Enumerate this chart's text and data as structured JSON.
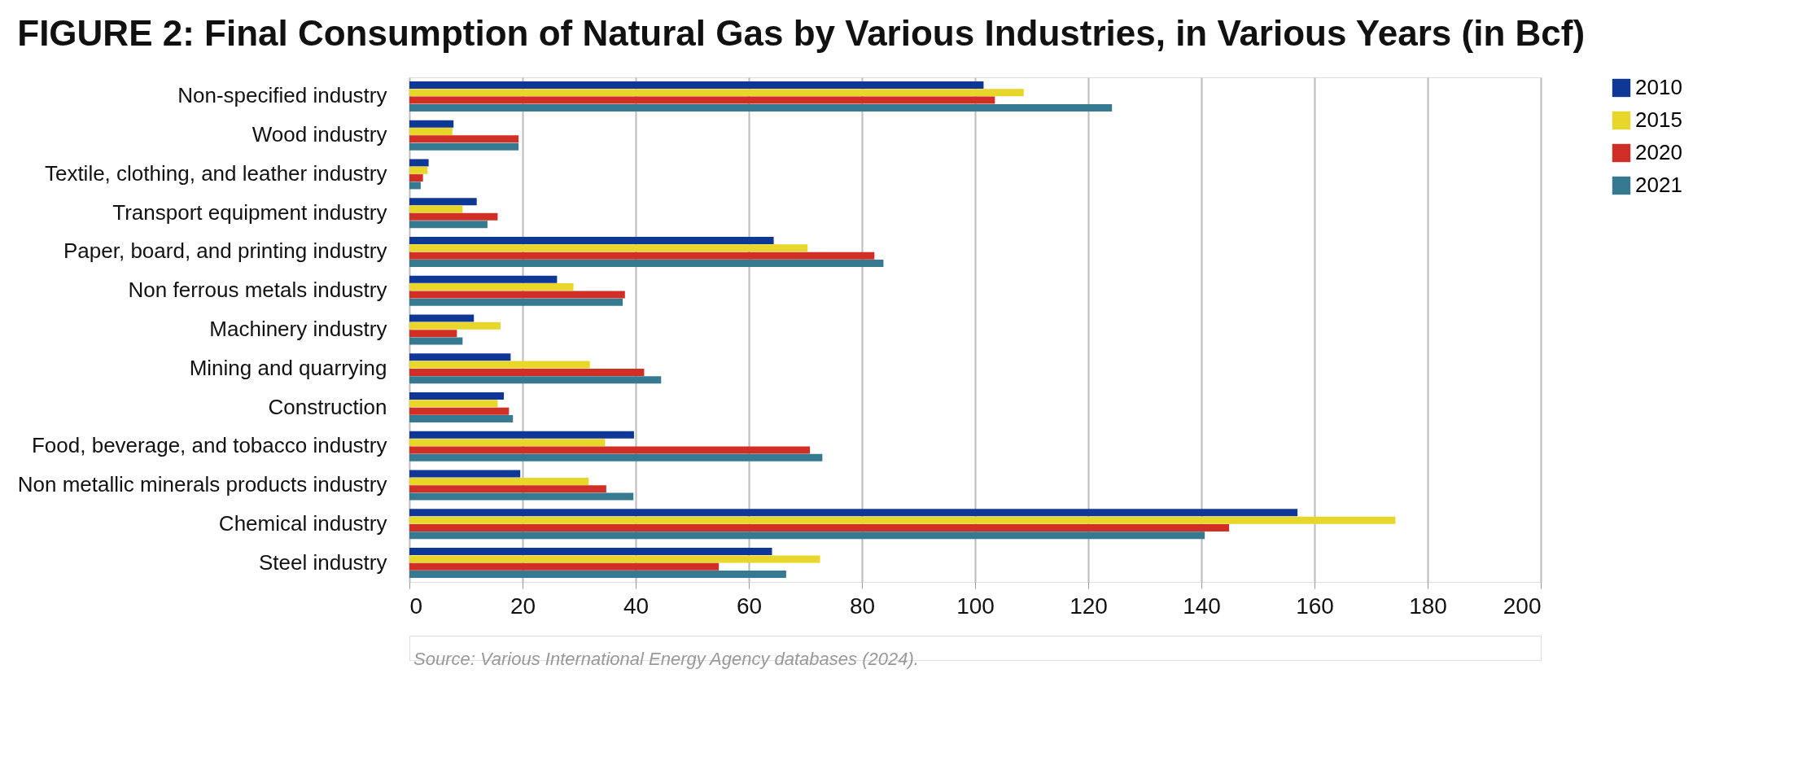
{
  "chart_data": {
    "type": "bar",
    "orientation": "horizontal",
    "title": "FIGURE 2: Final Consumption of Natural Gas by Various Industries, in Various Years (in Bcf)",
    "categories": [
      "Non-specified industry",
      "Wood industry",
      "Textile, clothing, and leather industry",
      "Transport equipment industry",
      "Paper, board, and printing industry",
      "Non ferrous metals industry",
      "Machinery industry",
      "Mining and quarrying",
      "Construction",
      "Food, beverage, and tobacco industry",
      "Non metallic minerals products industry",
      "Chemical industry",
      "Steel industry"
    ],
    "series": [
      {
        "name": "2010",
        "color": "#0f3796",
        "values": [
          101.5,
          7.8,
          3.4,
          11.9,
          64.4,
          26.1,
          11.4,
          17.9,
          16.7,
          39.7,
          19.6,
          157.0,
          64.1
        ]
      },
      {
        "name": "2015",
        "color": "#e8d62a",
        "values": [
          108.6,
          7.6,
          3.2,
          9.4,
          70.4,
          29.0,
          16.1,
          31.9,
          15.6,
          34.6,
          31.7,
          174.3,
          72.6
        ]
      },
      {
        "name": "2020",
        "color": "#d12f26",
        "values": [
          103.5,
          19.3,
          2.4,
          15.6,
          82.2,
          38.1,
          8.4,
          41.5,
          17.6,
          70.8,
          34.8,
          144.9,
          54.7
        ]
      },
      {
        "name": "2021",
        "color": "#357a90",
        "values": [
          124.2,
          19.3,
          2.0,
          13.8,
          83.8,
          37.7,
          9.4,
          44.5,
          18.3,
          73.0,
          39.6,
          140.6,
          66.6
        ]
      }
    ],
    "xlim": [
      0,
      200
    ],
    "xticks": [
      0,
      20,
      40,
      60,
      80,
      100,
      120,
      140,
      160,
      180,
      200
    ],
    "grid": "x",
    "legend": "top right",
    "annotations": [
      "Source: Various International Energy Agency databases (2024)."
    ]
  }
}
